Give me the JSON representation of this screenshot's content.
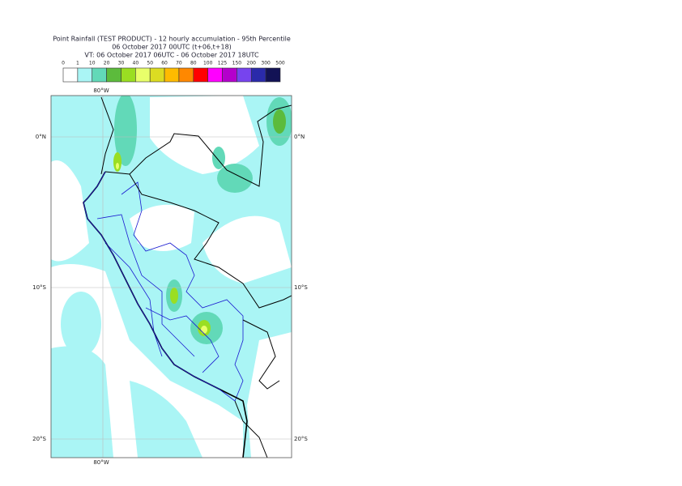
{
  "header": {
    "title": [
      "Point Rainfall (TEST PRODUCT) - 12 hourly accumulation - 95th Percentile",
      "06 October 2017 00UTC (t+06,t+18)",
      "VT: 06 October 2017 06UTC - 06 October 2017 18UTC"
    ]
  },
  "colorbar": {
    "labels": [
      0,
      1,
      10,
      20,
      30,
      40,
      50,
      60,
      70,
      80,
      100,
      125,
      150,
      200,
      300,
      500
    ],
    "colors": [
      "#ffffff",
      "#aaf5f5",
      "#62d9b8",
      "#5cbb3c",
      "#9ade22",
      "#e8ff6a",
      "#dcdc22",
      "#ffbb00",
      "#ff8800",
      "#ff0000",
      "#ff00ff",
      "#b400cc",
      "#7744ee",
      "#2a2aaa",
      "#121255"
    ]
  },
  "map": {
    "lat_labels": [
      "0°N",
      "10°S",
      "20°S"
    ],
    "lon_labels": [
      "80°W"
    ]
  }
}
